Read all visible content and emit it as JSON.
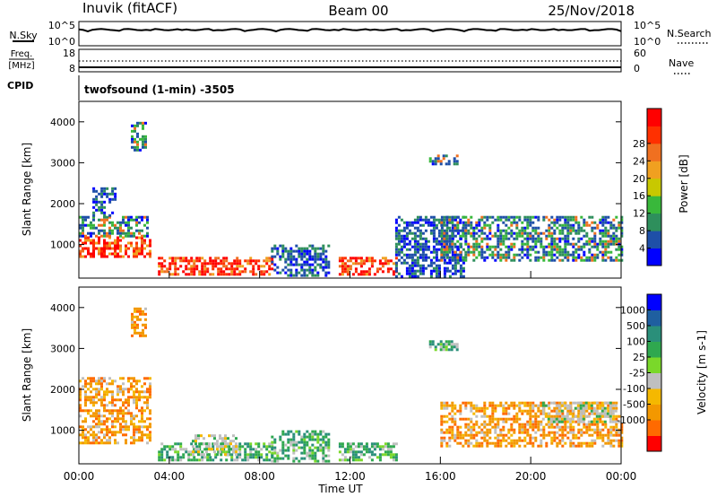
{
  "header": {
    "station": "Inuvik (fitACF)",
    "beam": "Beam 00",
    "date": "25/Nov/2018"
  },
  "top_panels": {
    "nsky_label": "N.Sky",
    "nsearch_label": "N.Search",
    "noise_ticks_left": [
      "10^5",
      "10^0"
    ],
    "noise_ticks_right": [
      "10^5",
      "10^0"
    ],
    "freq_label_line1": "Freq.",
    "freq_label_line2": "[MHz]",
    "freq_ticks_left": [
      "18",
      "8"
    ],
    "nave_label": "Nave",
    "nave_ticks_right": [
      "60",
      "0"
    ],
    "cpid_label": "CPID",
    "cpid_text": "twofsound (1-min) -3505"
  },
  "colors": {
    "power_scale": [
      "#0000ff",
      "#1e4fa8",
      "#2e8f5c",
      "#39b83b",
      "#c8c800",
      "#f0a020",
      "#f07020",
      "#ff3000",
      "#ff0000"
    ],
    "velocity_scale": [
      "#ff0000",
      "#ff6a00",
      "#f39800",
      "#f5b800",
      "#bfbfbf",
      "#7ad82a",
      "#2fa84f",
      "#2a8f7a",
      "#1f5fa0",
      "#0000ff"
    ]
  },
  "chart_data": [
    {
      "type": "heatmap",
      "panel": "power",
      "xlabel": "",
      "ylabel": "Slant Range [km]",
      "xlim_hours": [
        0,
        24
      ],
      "ylim_km": [
        180,
        4500
      ],
      "y_ticks": [
        "1000",
        "2000",
        "3000",
        "4000"
      ],
      "colorbar_label": "Power [dB]",
      "colorbar_ticks": [
        "4",
        "8",
        "12",
        "16",
        "20",
        "24",
        "28"
      ],
      "regions": [
        {
          "t0": 0.0,
          "t1": 3.2,
          "r0": 700,
          "r1": 1200,
          "level": "high"
        },
        {
          "t0": 0.0,
          "t1": 3.0,
          "r0": 1200,
          "r1": 1700,
          "level": "mid"
        },
        {
          "t0": 0.6,
          "t1": 1.6,
          "r0": 1700,
          "r1": 2400,
          "level": "low"
        },
        {
          "t0": 2.3,
          "t1": 2.9,
          "r0": 3300,
          "r1": 4000,
          "level": "mid"
        },
        {
          "t0": 3.5,
          "t1": 8.5,
          "r0": 250,
          "r1": 700,
          "level": "high"
        },
        {
          "t0": 8.5,
          "t1": 11.0,
          "r0": 250,
          "r1": 1000,
          "level": "low"
        },
        {
          "t0": 11.5,
          "t1": 14.0,
          "r0": 250,
          "r1": 700,
          "level": "high"
        },
        {
          "t0": 14.0,
          "t1": 17.0,
          "r0": 250,
          "r1": 1700,
          "level": "low"
        },
        {
          "t0": 15.5,
          "t1": 16.7,
          "r0": 2950,
          "r1": 3200,
          "level": "mid"
        },
        {
          "t0": 16.0,
          "t1": 24.0,
          "r0": 600,
          "r1": 1700,
          "level": "mid"
        }
      ]
    },
    {
      "type": "heatmap",
      "panel": "velocity",
      "xlabel": "Time UT",
      "ylabel": "Slant Range [km]",
      "xlim_hours": [
        0,
        24
      ],
      "ylim_km": [
        180,
        4500
      ],
      "x_ticks": [
        "00:00",
        "04:00",
        "08:00",
        "12:00",
        "16:00",
        "20:00",
        "00:00"
      ],
      "y_ticks": [
        "1000",
        "2000",
        "3000",
        "4000"
      ],
      "colorbar_label": "Velocity [m s-1]",
      "colorbar_ticks": [
        "1000",
        "500",
        "100",
        "25",
        "-25",
        "-100",
        "-500",
        "-1000"
      ],
      "regions": [
        {
          "t0": 0.0,
          "t1": 3.2,
          "r0": 700,
          "r1": 2300,
          "level": "neg"
        },
        {
          "t0": 2.3,
          "t1": 2.9,
          "r0": 3300,
          "r1": 4000,
          "level": "neg"
        },
        {
          "t0": 3.5,
          "t1": 8.5,
          "r0": 250,
          "r1": 700,
          "level": "pos"
        },
        {
          "t0": 5.0,
          "t1": 7.0,
          "r0": 400,
          "r1": 900,
          "level": "zero"
        },
        {
          "t0": 8.5,
          "t1": 11.0,
          "r0": 250,
          "r1": 1000,
          "level": "pos"
        },
        {
          "t0": 11.5,
          "t1": 14.0,
          "r0": 250,
          "r1": 700,
          "level": "pos"
        },
        {
          "t0": 15.5,
          "t1": 16.7,
          "r0": 2950,
          "r1": 3200,
          "level": "pos"
        },
        {
          "t0": 16.0,
          "t1": 24.0,
          "r0": 600,
          "r1": 1700,
          "level": "neg"
        },
        {
          "t0": 20.5,
          "t1": 23.8,
          "r0": 1200,
          "r1": 1700,
          "level": "zero"
        }
      ]
    }
  ]
}
